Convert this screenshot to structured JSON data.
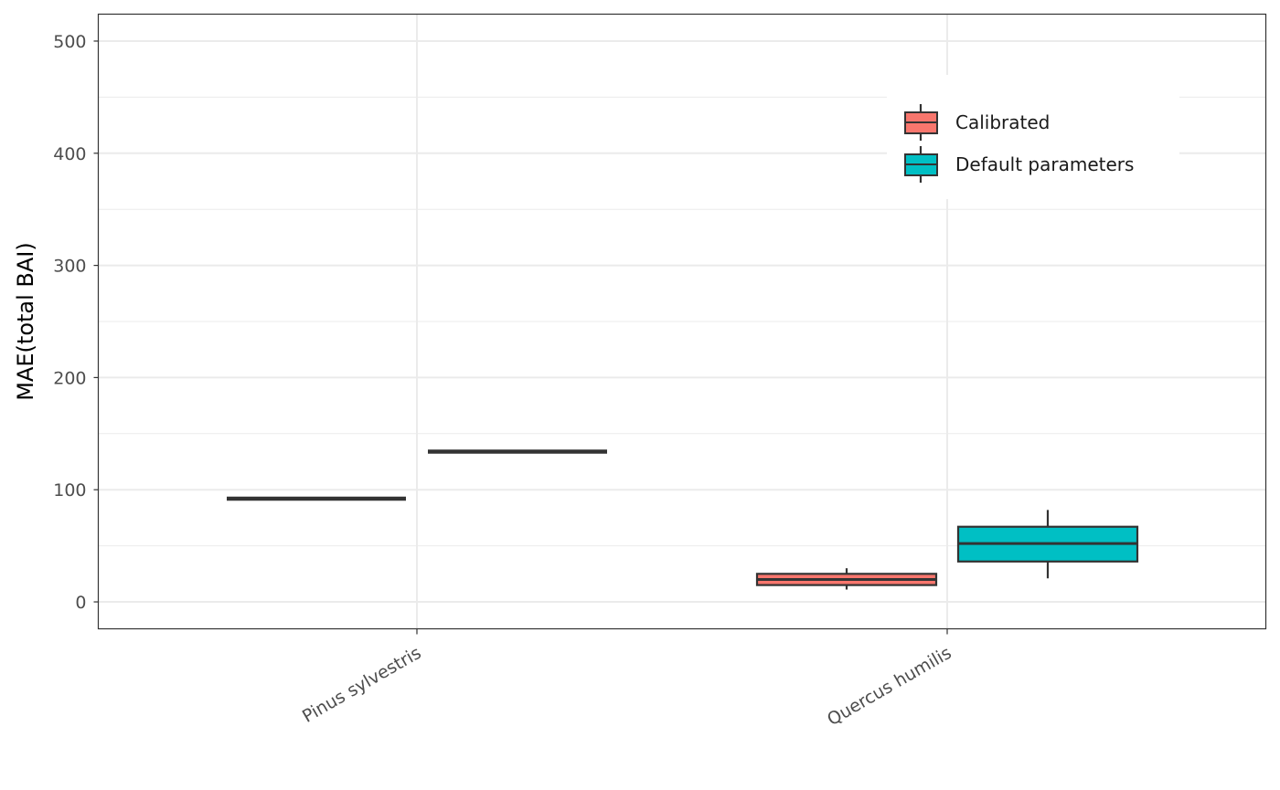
{
  "chart_data": {
    "type": "boxplot",
    "title": "",
    "xlabel": "",
    "ylabel": "MAE(total BAI)",
    "ylim": [
      -24,
      524
    ],
    "yticks": [
      0,
      100,
      200,
      300,
      400,
      500
    ],
    "grid": true,
    "legend_position": "top-right, inside plot",
    "categories": [
      "Pinus sylvestris",
      "Quercus humilis"
    ],
    "series": [
      {
        "name": "Calibrated",
        "color": "#F8766D",
        "boxes": [
          {
            "category": "Pinus sylvestris",
            "min": 92,
            "q1": 92,
            "median": 92,
            "q3": 92,
            "max": 92
          },
          {
            "category": "Quercus humilis",
            "min": 11,
            "q1": 15,
            "median": 20,
            "q3": 25,
            "max": 30
          }
        ]
      },
      {
        "name": "Default parameters",
        "color": "#00BFC4",
        "boxes": [
          {
            "category": "Pinus sylvestris",
            "min": 134,
            "q1": 134,
            "median": 134,
            "q3": 134,
            "max": 134
          },
          {
            "category": "Quercus humilis",
            "min": 21,
            "q1": 36,
            "median": 52,
            "q3": 67,
            "max": 82
          }
        ]
      }
    ]
  }
}
